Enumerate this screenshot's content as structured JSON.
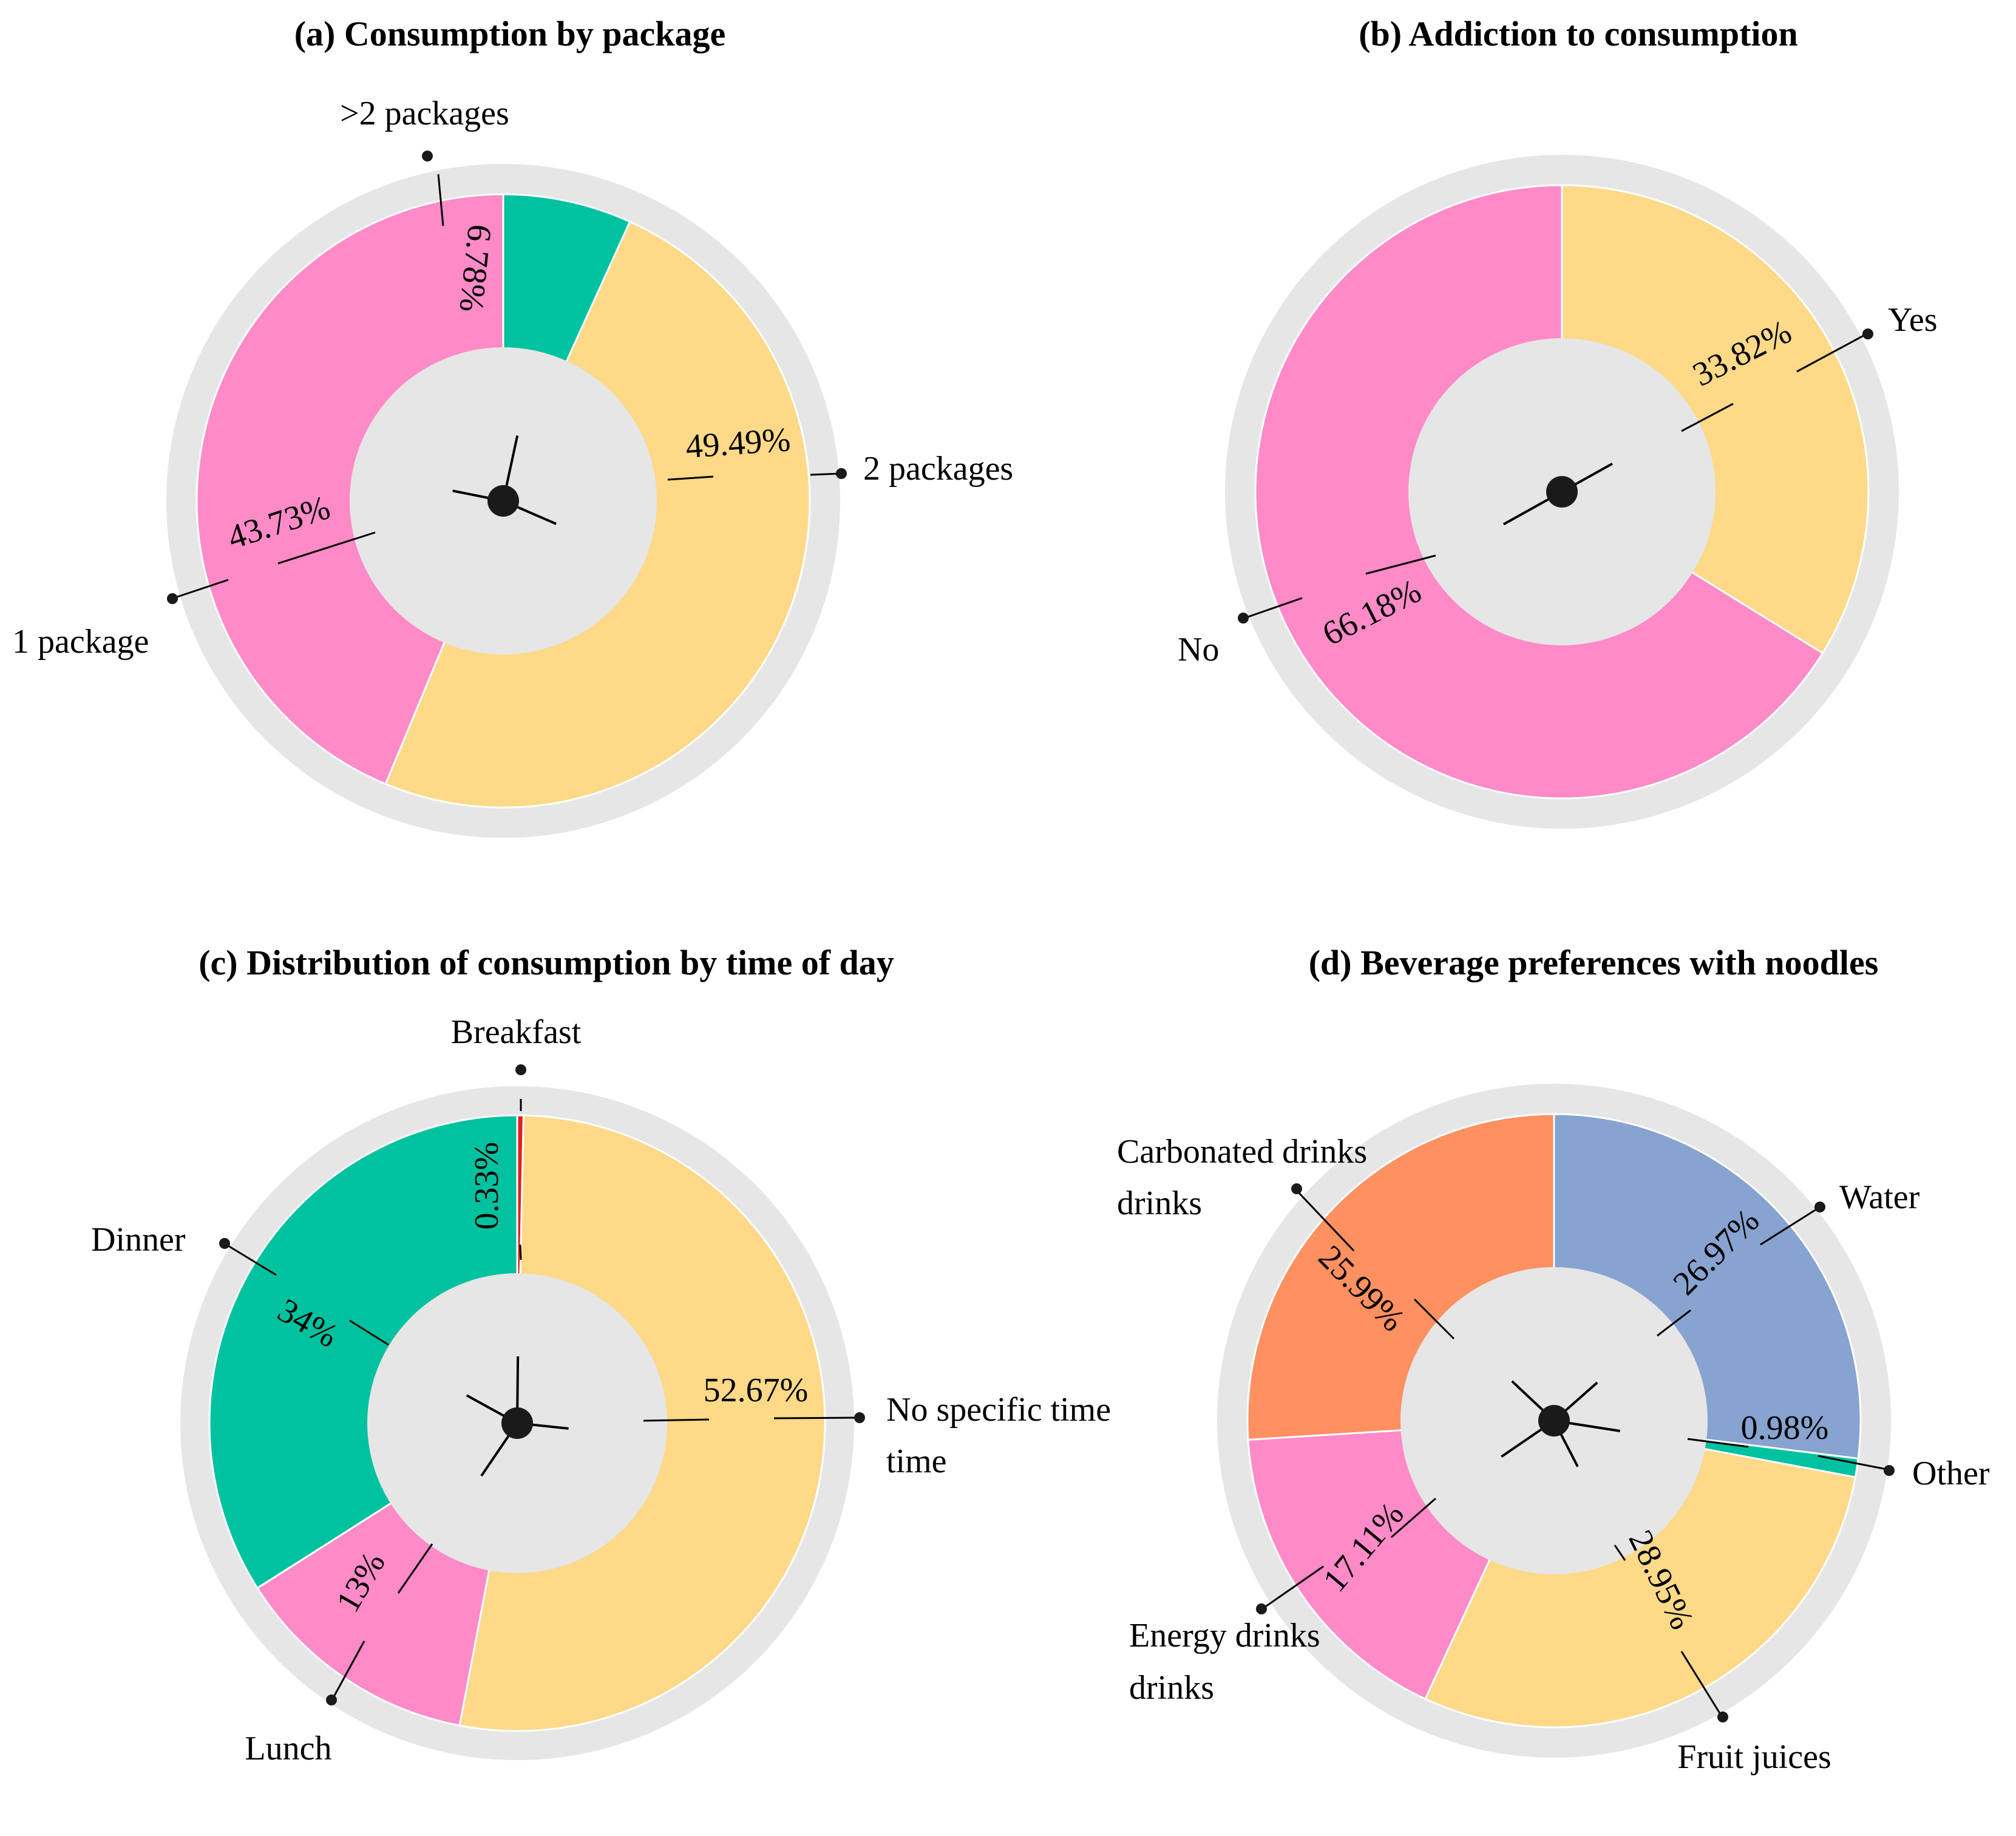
{
  "chart_data": [
    {
      "type": "pie",
      "title": "(a) Consumption by package",
      "categories": [
        ">2 packages",
        "2 packages",
        "1 package"
      ],
      "values": [
        6.78,
        49.49,
        43.73
      ],
      "value_labels": [
        "6.78%",
        "49.49%",
        "43.73%"
      ],
      "colors": [
        "#00C2A0",
        "#FDD988",
        "#FF8AC8"
      ],
      "order": [
        1,
        0,
        2
      ],
      "style": "donut"
    },
    {
      "type": "pie",
      "title": "(b) Addiction to consumption",
      "categories": [
        "Yes",
        "No"
      ],
      "values": [
        33.82,
        66.18
      ],
      "value_labels": [
        "33.82%",
        "66.18%"
      ],
      "colors": [
        "#FDD988",
        "#FF8AC8"
      ],
      "order": [
        0,
        1
      ],
      "style": "donut"
    },
    {
      "type": "pie",
      "title": "(c) Distribution of consumption by time of day",
      "categories": [
        "Breakfast",
        "No specific time",
        "Lunch",
        "Dinner"
      ],
      "values": [
        0.33,
        52.67,
        13,
        34
      ],
      "value_labels": [
        "0.33%",
        "52.67%",
        "13%",
        "34%"
      ],
      "colors": [
        "#E02020",
        "#FDD988",
        "#FF8AC8",
        "#00C2A0"
      ],
      "order": [
        1,
        2,
        3,
        0
      ],
      "style": "donut"
    },
    {
      "type": "pie",
      "title": "(d) Beverage preferences with noodles",
      "categories": [
        "Water",
        "Other",
        "Fruit juices",
        "Energy drinks",
        "Carbonated drinks"
      ],
      "values": [
        26.97,
        0.98,
        28.95,
        17.11,
        25.99
      ],
      "value_labels": [
        "26.97%",
        "0.98%",
        "28.95%",
        "17.11%",
        "25.99%"
      ],
      "colors": [
        "#87A3D0",
        "#00C2A0",
        "#FDD988",
        "#FF8AC8",
        "#FF905F"
      ],
      "order": [
        0,
        1,
        2,
        3,
        4
      ],
      "style": "donut"
    }
  ]
}
